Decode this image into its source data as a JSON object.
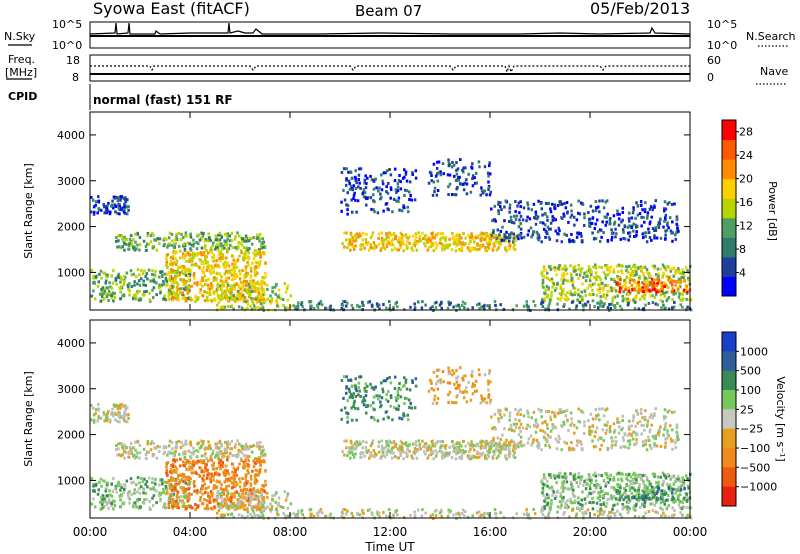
{
  "header": {
    "title": "Syowa East (fitACF)",
    "beam": "Beam 07",
    "date": "05/Feb/2013"
  },
  "panels": {
    "nsky_label": "N.Sky",
    "nsearch_label": "N.Search",
    "nsky_ticks": [
      "10^5",
      "10^0"
    ],
    "freq_label_line1": "Freq.",
    "freq_label_line2": "[MHz]",
    "freq_ticks": [
      "18",
      "8"
    ],
    "nave_label": "Nave",
    "nave_ticks": [
      "60",
      "0"
    ],
    "cpid_label": "CPID",
    "cpid_text": "normal (fast) 151 RF"
  },
  "colors": {
    "power_scale": [
      "#0000ff",
      "#1f3f9f",
      "#2e7d6b",
      "#4fa060",
      "#b8d400",
      "#ffd000",
      "#ff8c00",
      "#ff5a00",
      "#ff0000"
    ],
    "velocity_scale": [
      "#1a3fc8",
      "#2e5f9c",
      "#3a8a55",
      "#77c85a",
      "#c8c8c0",
      "#e6a020",
      "#f08a1c",
      "#f05a10",
      "#e82010"
    ],
    "ground_scatter": "#bebeb6"
  },
  "chart_data": [
    {
      "type": "heatmap",
      "name": "power",
      "ylabel": "Slant Range [km]",
      "xlabel": "",
      "ylim": [
        180,
        4500
      ],
      "xlim": [
        0,
        24
      ],
      "y_ticks": [
        "1000",
        "2000",
        "3000",
        "4000"
      ],
      "colorbar_label": "Power [dB]",
      "colorbar_ticks": [
        "4",
        "8",
        "12",
        "16",
        "20",
        "24",
        "28"
      ],
      "colorbar_range": [
        0,
        30
      ]
    },
    {
      "type": "heatmap",
      "name": "velocity",
      "ylabel": "Slant Range [km]",
      "xlabel": "Time UT",
      "ylim": [
        180,
        4500
      ],
      "xlim": [
        0,
        24
      ],
      "y_ticks": [
        "1000",
        "2000",
        "3000",
        "4000"
      ],
      "x_ticks": [
        "00:00",
        "04:00",
        "08:00",
        "12:00",
        "16:00",
        "20:00",
        "00:00"
      ],
      "colorbar_label": "Velocity [m s⁻¹]",
      "colorbar_ticks": [
        "1000",
        "500",
        "100",
        "25",
        "−25",
        "−100",
        "−500",
        "−1000"
      ]
    }
  ]
}
